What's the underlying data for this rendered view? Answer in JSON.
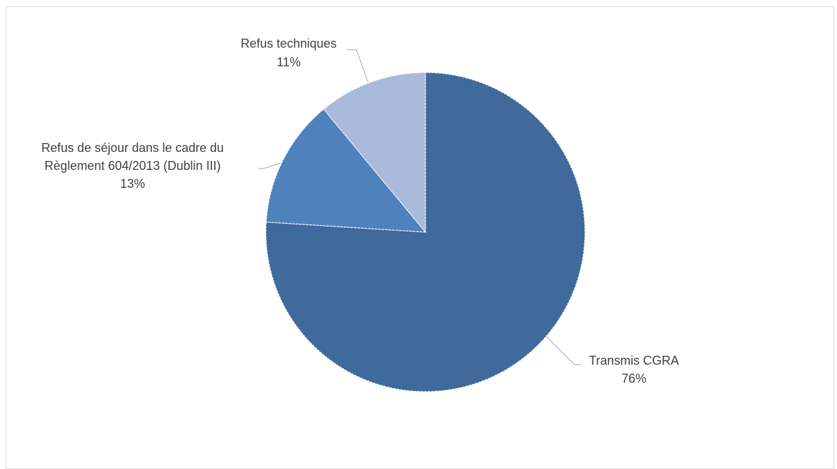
{
  "chart_data": {
    "type": "pie",
    "title": "",
    "slices": [
      {
        "label": "Transmis CGRA",
        "value": 76,
        "value_label": "76%",
        "color": "#3f6a9b"
      },
      {
        "label": "Refus de séjour dans le cadre du Règlement 604/2013 (Dublin III)",
        "label_lines": [
          "Refus de séjour dans le cadre du",
          "Règlement 604/2013 (Dublin III)"
        ],
        "value": 13,
        "value_label": "13%",
        "color": "#4f81bd"
      },
      {
        "label": "Refus techniques",
        "value": 11,
        "value_label": "11%",
        "color": "#a9badb"
      }
    ],
    "legend": "none",
    "label_color": "#404040"
  }
}
